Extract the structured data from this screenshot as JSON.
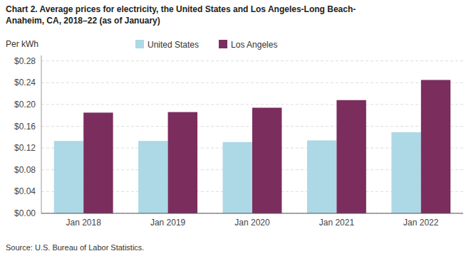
{
  "chart_data": {
    "type": "bar",
    "title": "Chart 2. Average prices for electricity, the United States and Los Angeles-Long Beach-\nAnaheim, CA, 2018–22 (as of January)",
    "ylabel": "Per kWh",
    "source": "Source: U.S. Bureau of Labor Statistics.",
    "categories": [
      "Jan 2018",
      "Jan 2019",
      "Jan 2020",
      "Jan 2021",
      "Jan 2022"
    ],
    "series": [
      {
        "name": "United States",
        "color": "#add8e6",
        "values": [
          0.133,
          0.133,
          0.131,
          0.134,
          0.149
        ]
      },
      {
        "name": "Los Angeles",
        "color": "#7b2d5e",
        "values": [
          0.185,
          0.186,
          0.194,
          0.208,
          0.245
        ]
      }
    ],
    "ylim": [
      0,
      0.29
    ],
    "yticks": [
      {
        "value": 0.0,
        "label": "$0.00"
      },
      {
        "value": 0.04,
        "label": "$0.04"
      },
      {
        "value": 0.08,
        "label": "$0.08"
      },
      {
        "value": 0.12,
        "label": "$0.12"
      },
      {
        "value": 0.16,
        "label": "$0.16"
      },
      {
        "value": 0.2,
        "label": "$0.20"
      },
      {
        "value": 0.24,
        "label": "$0.24"
      },
      {
        "value": 0.28,
        "label": "$0.28"
      }
    ],
    "grid": true,
    "legend": "top"
  }
}
